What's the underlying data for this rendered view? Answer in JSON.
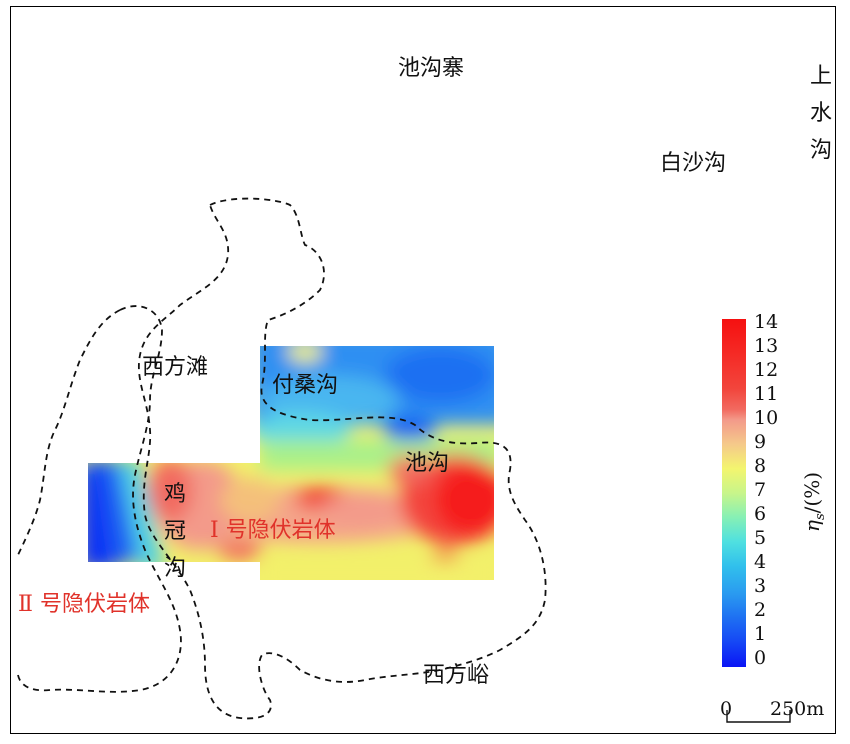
{
  "places": {
    "chigouzhai": "池沟寨",
    "shangshuigou": [
      "上",
      "水",
      "沟"
    ],
    "baishagou": "白沙沟",
    "xifangtan": "西方滩",
    "fusanggou": "付桑沟",
    "chigou": "池沟",
    "jiguangou": [
      "鸡",
      "冠",
      "沟"
    ],
    "xifangyu": "西方峪"
  },
  "bodies": {
    "body1": "Ⅰ 号隐伏岩体",
    "body2": "Ⅱ 号隐伏岩体"
  },
  "colorbar": {
    "title": "ηs/(%)",
    "title_main": "η",
    "title_sub": "s",
    "title_rest": "/(%)",
    "ticks": [
      "14",
      "13",
      "12",
      "11",
      "10",
      "9",
      "8",
      "7",
      "6",
      "5",
      "4",
      "3",
      "2",
      "1",
      "0"
    ],
    "range": [
      0,
      14
    ],
    "colors": [
      "#0a1cf5",
      "#1546f5",
      "#1e6ff2",
      "#2a9af0",
      "#31c0ec",
      "#4fe0e0",
      "#86f0b5",
      "#c8f58a",
      "#f3f56f",
      "#f5c98a",
      "#f39a8a",
      "#f26a60",
      "#f2453c",
      "#f52a25",
      "#f51a1a"
    ]
  },
  "scale_bar": {
    "start": "0",
    "end": "250m"
  },
  "colors": {
    "frame": "#000000",
    "contour": "#111111",
    "body_label": "#e0322a"
  }
}
